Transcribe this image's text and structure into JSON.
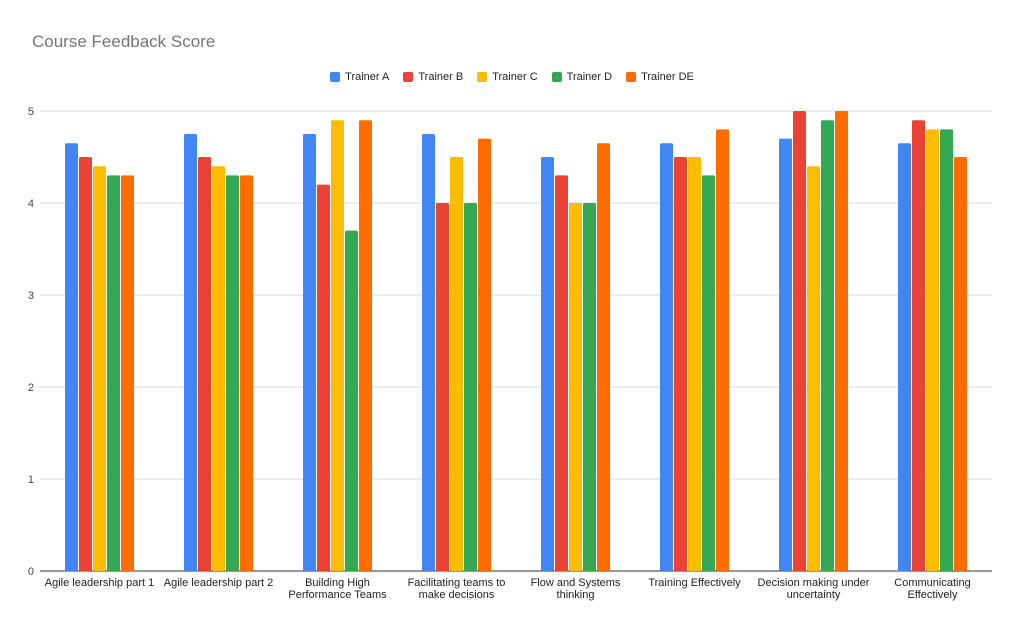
{
  "chart_data": {
    "type": "bar",
    "title": "Course Feedback Score",
    "xlabel": "",
    "ylabel": "",
    "ylim": [
      0,
      5
    ],
    "yticks": [
      "0",
      "1",
      "2",
      "3",
      "4",
      "5"
    ],
    "grid": true,
    "legend_position": "top",
    "categories": [
      [
        "Agile leadership part 1"
      ],
      [
        "Agile leadership part 2"
      ],
      [
        "Building High",
        "Performance Teams"
      ],
      [
        "Facilitating teams to",
        "make decisions"
      ],
      [
        "Flow and Systems",
        "thinking"
      ],
      [
        "Training Effectively"
      ],
      [
        "Decision making under",
        "uncertainty"
      ],
      [
        "Communicating",
        "Effectively"
      ]
    ],
    "series": [
      {
        "name": "Trainer A",
        "color": "#4285f4",
        "values": [
          4.65,
          4.75,
          4.75,
          4.75,
          4.5,
          4.65,
          4.7,
          4.65
        ]
      },
      {
        "name": "Trainer B",
        "color": "#ea4335",
        "values": [
          4.5,
          4.5,
          4.2,
          4.0,
          4.3,
          4.5,
          5.0,
          4.9
        ]
      },
      {
        "name": "Trainer C",
        "color": "#fbbc04",
        "values": [
          4.4,
          4.4,
          4.9,
          4.5,
          4.0,
          4.5,
          4.4,
          4.8
        ]
      },
      {
        "name": "Trainer D",
        "color": "#34a853",
        "values": [
          4.3,
          4.3,
          3.7,
          4.0,
          4.0,
          4.3,
          4.9,
          4.8
        ]
      },
      {
        "name": "Trainer DE",
        "color": "#ff6d01",
        "values": [
          4.3,
          4.3,
          4.9,
          4.7,
          4.65,
          4.8,
          5.0,
          4.5
        ]
      }
    ]
  }
}
